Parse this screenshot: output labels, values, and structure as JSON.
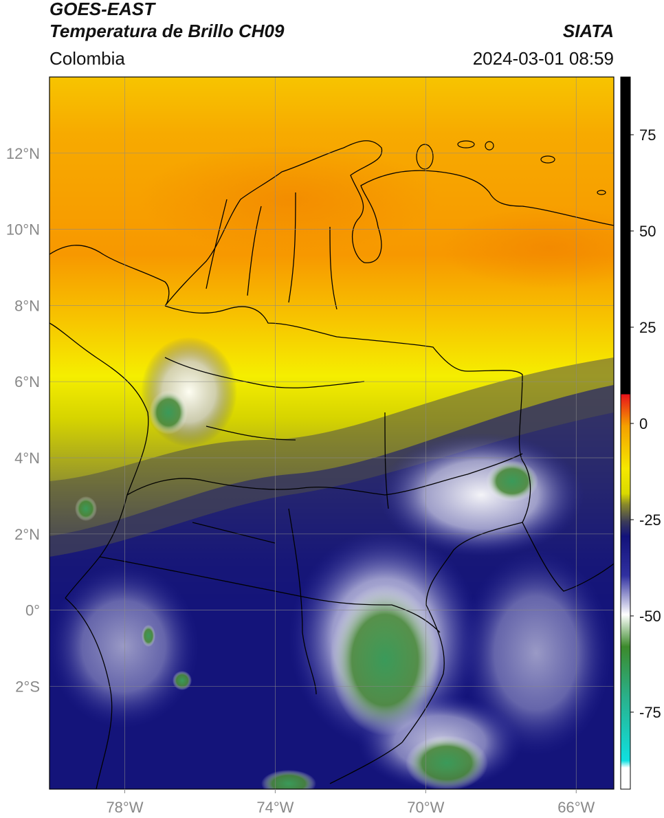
{
  "header": {
    "title_line1": "GOES-EAST",
    "title_line2": "Temperatura de Brillo CH09",
    "region": "Colombia",
    "agency": "SIATA",
    "timestamp": "2024-03-01 08:59"
  },
  "map": {
    "lon_ticks": [
      {
        "lon": -78,
        "label": "78°W"
      },
      {
        "lon": -74,
        "label": "74°W"
      },
      {
        "lon": -70,
        "label": "70°W"
      },
      {
        "lon": -66,
        "label": "66°W"
      }
    ],
    "lat_ticks": [
      {
        "lat": 12,
        "label": "12°N"
      },
      {
        "lat": 10,
        "label": "10°N"
      },
      {
        "lat": 8,
        "label": "8°N"
      },
      {
        "lat": 6,
        "label": "6°N"
      },
      {
        "lat": 4,
        "label": "4°N"
      },
      {
        "lat": 2,
        "label": "2°N"
      },
      {
        "lat": 0,
        "label": "0°"
      },
      {
        "lat": -2,
        "label": "2°S"
      }
    ],
    "extent": {
      "lon_min": -80,
      "lon_max": -65,
      "lat_min": -4.7,
      "lat_max": 14
    }
  },
  "colorbar": {
    "ticks": [
      {
        "value": 75,
        "label": "75"
      },
      {
        "value": 50,
        "label": "50"
      },
      {
        "value": 25,
        "label": "25"
      },
      {
        "value": 0,
        "label": "0"
      },
      {
        "value": -25,
        "label": "-25"
      },
      {
        "value": -50,
        "label": "-50"
      },
      {
        "value": -75,
        "label": "-75"
      }
    ],
    "range": [
      -95,
      90
    ]
  },
  "colors": {
    "black": "#000000",
    "red": "#e8141a",
    "orange": "#f7a000",
    "yellow": "#f5f000",
    "olive": "#8a8a2a",
    "dark_gray": "#3a3a5a",
    "navy": "#12127a",
    "white": "#ffffff",
    "green": "#3c8a2c",
    "teal": "#2ab08a",
    "cyan": "#10e0e0"
  }
}
